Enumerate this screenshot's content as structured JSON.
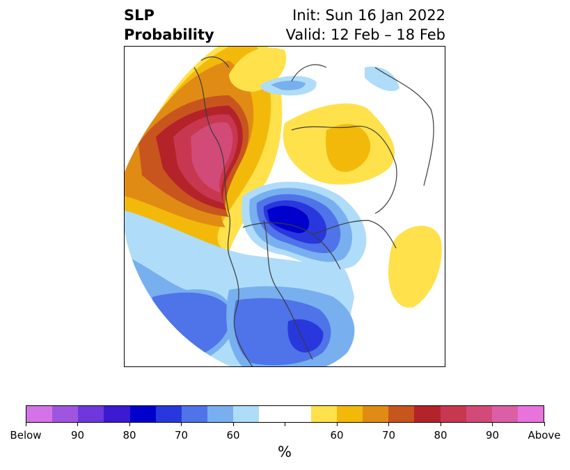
{
  "title": {
    "left_line1": "SLP",
    "left_line2": "Probability",
    "right_line1": "Init: Sun 16 Jan 2022",
    "right_line2": "Valid: 12 Feb – 18 Feb"
  },
  "colorbar": {
    "colors": [
      "#d473e8",
      "#9f55e0",
      "#6e38dc",
      "#3b1ad2",
      "#0000cd",
      "#2838dc",
      "#4f73e8",
      "#78afef",
      "#afdcf8",
      "#ffffff",
      "#ffffff",
      "#ffe14b",
      "#f3b90a",
      "#e08c14",
      "#c8551e",
      "#b4232a",
      "#c83750",
      "#d24b78",
      "#dc5fa5",
      "#e873dc"
    ],
    "tick_labels": [
      "Below",
      "90",
      "80",
      "70",
      "60",
      "",
      "60",
      "70",
      "80",
      "90",
      "Above"
    ],
    "units": "%"
  },
  "map": {
    "projection": "north-polar-stereographic",
    "variable": "SLP probability tercile",
    "features": [
      {
        "name": "above-anomaly-europe-atlantic",
        "category": "above",
        "peak": "90"
      },
      {
        "name": "above-anomaly-siberia",
        "category": "above",
        "peak": "60"
      },
      {
        "name": "above-anomaly-north-pacific",
        "category": "above",
        "peak": "60"
      },
      {
        "name": "below-anomaly-canadian-archipelago",
        "category": "below",
        "peak": "80"
      },
      {
        "name": "below-anomaly-north-atlantic",
        "category": "below",
        "peak": "70"
      },
      {
        "name": "below-anomaly-eastern-us",
        "category": "below",
        "peak": "70"
      },
      {
        "name": "below-anomaly-arctic-siberia",
        "category": "below",
        "peak": "60"
      }
    ]
  }
}
